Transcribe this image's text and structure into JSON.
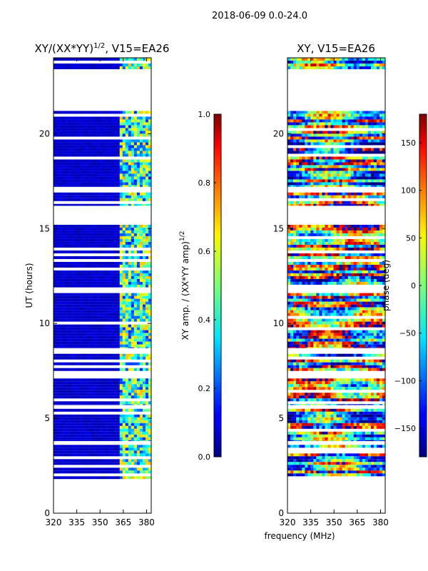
{
  "figure": {
    "suptitle": "2018-06-09 0.0-24.0",
    "shared_xlabel": "frequency (MHz)"
  },
  "chart_data": [
    {
      "type": "heatmap",
      "title_main": "XY/(XX*YY)",
      "title_sup": "1/2",
      "title_tail": ", V15=EA26",
      "ylabel": "UT (hours)",
      "xlim": [
        320,
        383
      ],
      "ylim": [
        0,
        24
      ],
      "xticks": [
        "320",
        "335",
        "350",
        "365",
        "380"
      ],
      "xtick_values": [
        320,
        335,
        350,
        365,
        380
      ],
      "yticks": [
        "0",
        "5",
        "10",
        "15",
        "20"
      ],
      "ytick_values": [
        0,
        5,
        10,
        15,
        20
      ],
      "data_segments_ut": [
        [
          1.8,
          3.6
        ],
        [
          3.8,
          5.5
        ],
        [
          5.7,
          7.1
        ],
        [
          7.4,
          8.4
        ],
        [
          8.7,
          11.6
        ],
        [
          11.9,
          15.2
        ],
        [
          16.2,
          16.9
        ],
        [
          17.2,
          21.2
        ],
        [
          23.4,
          24.0
        ]
      ],
      "colorbar": {
        "label_main": "XY amp. / (XX*YY amp)",
        "label_sup": "1/2",
        "range": [
          0.0,
          1.0
        ],
        "ticks": [
          "0.0",
          "0.2",
          "0.4",
          "0.6",
          "0.8",
          "1.0"
        ],
        "tick_values": [
          0.0,
          0.2,
          0.4,
          0.6,
          0.8,
          1.0
        ]
      }
    },
    {
      "type": "heatmap",
      "title": "XY, V15=EA26",
      "xlim": [
        320,
        383
      ],
      "ylim": [
        0,
        24
      ],
      "xticks": [
        "320",
        "335",
        "350",
        "365",
        "380"
      ],
      "xtick_values": [
        320,
        335,
        350,
        365,
        380
      ],
      "yticks": [
        "0",
        "5",
        "10",
        "15",
        "20"
      ],
      "ytick_values": [
        0,
        5,
        10,
        15,
        20
      ],
      "data_segments_ut": [
        [
          1.8,
          3.6
        ],
        [
          3.8,
          5.5
        ],
        [
          5.7,
          7.1
        ],
        [
          7.4,
          8.4
        ],
        [
          8.7,
          11.6
        ],
        [
          11.9,
          15.2
        ],
        [
          16.2,
          16.9
        ],
        [
          17.2,
          21.2
        ],
        [
          23.4,
          24.0
        ]
      ],
      "colorbar": {
        "label": "phase (deg)",
        "range": [
          -180,
          180
        ],
        "ticks": [
          "150",
          "100",
          "50",
          "0",
          "−50",
          "−100",
          "−150"
        ],
        "tick_values": [
          150,
          100,
          50,
          0,
          -50,
          -100,
          -150
        ]
      }
    }
  ]
}
